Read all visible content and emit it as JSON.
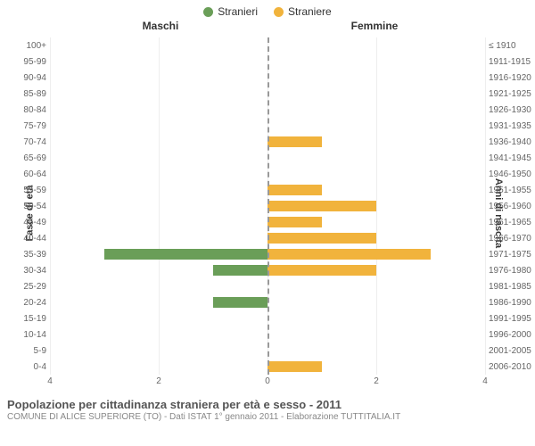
{
  "legend": [
    {
      "label": "Stranieri",
      "color": "#6a9e58"
    },
    {
      "label": "Straniere",
      "color": "#f1b33c"
    }
  ],
  "headers": {
    "left": "Maschi",
    "right": "Femmine"
  },
  "y_axis_left": "Fasce di età",
  "y_axis_right": "Anni di nascita",
  "x_max": 4,
  "x_ticks_left": [
    "4",
    "2",
    "0"
  ],
  "x_ticks_right": [
    "0",
    "2",
    "4"
  ],
  "bar_colors": {
    "male": "#6a9e58",
    "female": "#f1b33c"
  },
  "grid_color": "#eeeeee",
  "center_line_color": "#999999",
  "age_groups": [
    {
      "age": "100+",
      "birth": "≤ 1910",
      "m": 0,
      "f": 0
    },
    {
      "age": "95-99",
      "birth": "1911-1915",
      "m": 0,
      "f": 0
    },
    {
      "age": "90-94",
      "birth": "1916-1920",
      "m": 0,
      "f": 0
    },
    {
      "age": "85-89",
      "birth": "1921-1925",
      "m": 0,
      "f": 0
    },
    {
      "age": "80-84",
      "birth": "1926-1930",
      "m": 0,
      "f": 0
    },
    {
      "age": "75-79",
      "birth": "1931-1935",
      "m": 0,
      "f": 0
    },
    {
      "age": "70-74",
      "birth": "1936-1940",
      "m": 0,
      "f": 1
    },
    {
      "age": "65-69",
      "birth": "1941-1945",
      "m": 0,
      "f": 0
    },
    {
      "age": "60-64",
      "birth": "1946-1950",
      "m": 0,
      "f": 0
    },
    {
      "age": "55-59",
      "birth": "1951-1955",
      "m": 0,
      "f": 1
    },
    {
      "age": "50-54",
      "birth": "1956-1960",
      "m": 0,
      "f": 2
    },
    {
      "age": "45-49",
      "birth": "1961-1965",
      "m": 0,
      "f": 1
    },
    {
      "age": "40-44",
      "birth": "1966-1970",
      "m": 0,
      "f": 2
    },
    {
      "age": "35-39",
      "birth": "1971-1975",
      "m": 3,
      "f": 3
    },
    {
      "age": "30-34",
      "birth": "1976-1980",
      "m": 1,
      "f": 2
    },
    {
      "age": "25-29",
      "birth": "1981-1985",
      "m": 0,
      "f": 0
    },
    {
      "age": "20-24",
      "birth": "1986-1990",
      "m": 1,
      "f": 0
    },
    {
      "age": "15-19",
      "birth": "1991-1995",
      "m": 0,
      "f": 0
    },
    {
      "age": "10-14",
      "birth": "1996-2000",
      "m": 0,
      "f": 0
    },
    {
      "age": "5-9",
      "birth": "2001-2005",
      "m": 0,
      "f": 0
    },
    {
      "age": "0-4",
      "birth": "2006-2010",
      "m": 0,
      "f": 1
    }
  ],
  "caption_title": "Popolazione per cittadinanza straniera per età e sesso - 2011",
  "caption_sub": "COMUNE DI ALICE SUPERIORE (TO) - Dati ISTAT 1° gennaio 2011 - Elaborazione TUTTITALIA.IT"
}
